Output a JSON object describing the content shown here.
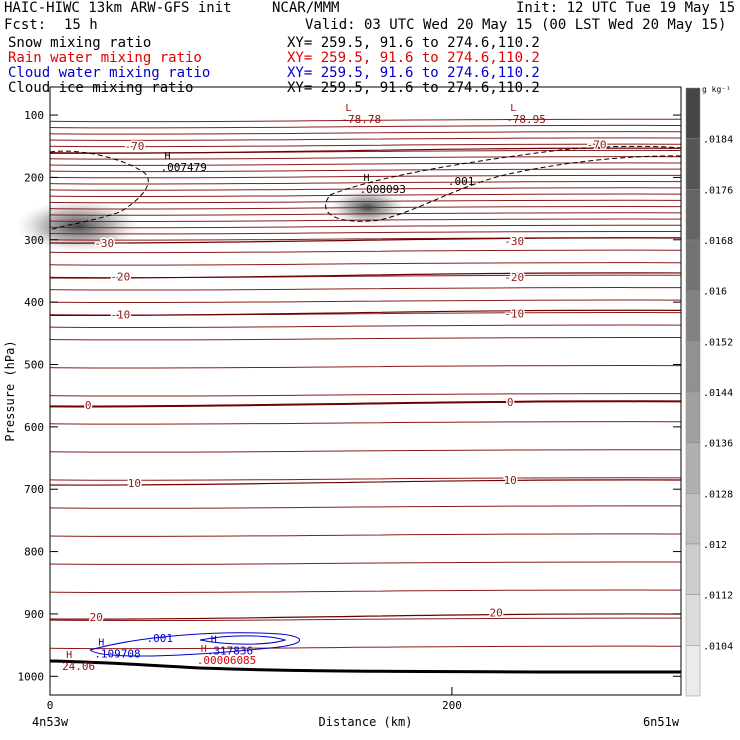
{
  "header": {
    "title_left": "HAIC-HIWC 13km ARW-GFS init",
    "org": "NCAR/MMM",
    "init": "Init: 12 UTC Tue 19 May 15",
    "fcst_label": "Fcst:",
    "fcst_value": "15 h",
    "valid": "Valid: 03 UTC Wed 20 May 15 (00 LST Wed 20 May 15)"
  },
  "fields": [
    {
      "name": "Snow mixing ratio",
      "xy": "XY= 259.5, 91.6 to 274.6,110.2",
      "color": "#000000"
    },
    {
      "name": "Rain water mixing ratio",
      "xy": "XY= 259.5, 91.6 to 274.6,110.2",
      "color": "#e00000"
    },
    {
      "name": "Cloud water mixing ratio",
      "xy": "XY= 259.5, 91.6 to 274.6,110.2",
      "color": "#0000cc"
    },
    {
      "name": "Cloud ice mixing ratio",
      "xy": "XY= 259.5, 91.6 to 274.6,110.2",
      "color": "#000000"
    }
  ],
  "chart_data": {
    "type": "contour",
    "xlabel": "Distance (km)",
    "ylabel": "Pressure (hPa)",
    "xlim": [
      0,
      314
    ],
    "ylim": [
      1030,
      55
    ],
    "x_ticks": [
      0,
      200
    ],
    "y_ticks": [
      100,
      200,
      300,
      400,
      500,
      600,
      700,
      800,
      900,
      1000
    ],
    "x_endpoints": [
      "4n53w",
      "6n51w"
    ],
    "colorbar": {
      "unit": "g kg⁻¹",
      "levels": [
        "0.0104",
        ".0112",
        ".012",
        ".0128",
        ".0136",
        ".0144",
        ".0152",
        ".016",
        ".0168",
        ".0176",
        ".0184"
      ],
      "display_labels": [
        ".0104",
        ".0112",
        ".012",
        ".0128",
        ".0136",
        ".0144",
        ".0152",
        ".016",
        ".0168",
        ".0176",
        ".0184"
      ]
    },
    "temperature_contours": [
      {
        "label": "-70",
        "p": 158,
        "label_positions": [
          {
            "x": 42,
            "p": 150
          },
          {
            "x": 272,
            "p": 147
          }
        ]
      },
      {
        "label": "-30",
        "p": 302,
        "label_positions": [
          {
            "x": 27,
            "p": 305
          },
          {
            "x": 231,
            "p": 302
          }
        ]
      },
      {
        "label": "-20",
        "p": 358,
        "label_positions": [
          {
            "x": 35,
            "p": 359
          },
          {
            "x": 231,
            "p": 360
          }
        ]
      },
      {
        "label": "-10",
        "p": 418,
        "label_positions": [
          {
            "x": 35,
            "p": 420
          },
          {
            "x": 231,
            "p": 418
          }
        ]
      },
      {
        "label": "0",
        "p": 564,
        "label_positions": [
          {
            "x": 19,
            "p": 565
          },
          {
            "x": 229,
            "p": 560
          }
        ]
      },
      {
        "label": "10",
        "p": 690,
        "label_positions": [
          {
            "x": 42,
            "p": 690
          },
          {
            "x": 229,
            "p": 685
          }
        ]
      },
      {
        "label": "20",
        "p": 905,
        "label_positions": [
          {
            "x": 23,
            "p": 905
          },
          {
            "x": 222,
            "p": 898
          }
        ]
      }
    ],
    "annotations": [
      {
        "label": "L",
        "value": "-78.78",
        "x": 147,
        "p": 113,
        "color": "#8b1010"
      },
      {
        "label": "L",
        "value": "-78.95",
        "x": 229,
        "p": 113,
        "color": "#8b1010"
      },
      {
        "label": "H",
        "value": ".007479",
        "x": 57,
        "p": 190,
        "color": "#000000"
      },
      {
        "label": "H",
        "value": ".008093",
        "x": 156,
        "p": 225,
        "color": "#000000"
      },
      {
        "label": "",
        "value": ".001",
        "x": 200,
        "p": 212,
        "color": "#000000"
      },
      {
        "label": "H",
        "value": ".109708",
        "x": 24,
        "p": 970,
        "color": "#0000cc"
      },
      {
        "label": "",
        "value": ".001",
        "x": 50,
        "p": 945,
        "color": "#0000cc"
      },
      {
        "label": "H",
        "value": ".317836",
        "x": 80,
        "p": 965,
        "color": "#0000cc"
      },
      {
        "label": "H",
        "value": ".00006085",
        "x": 75,
        "p": 980,
        "color": "#e00000"
      },
      {
        "label": "H",
        "value": "24.06",
        "x": 8,
        "p": 990,
        "color": "#8b1010"
      }
    ]
  }
}
